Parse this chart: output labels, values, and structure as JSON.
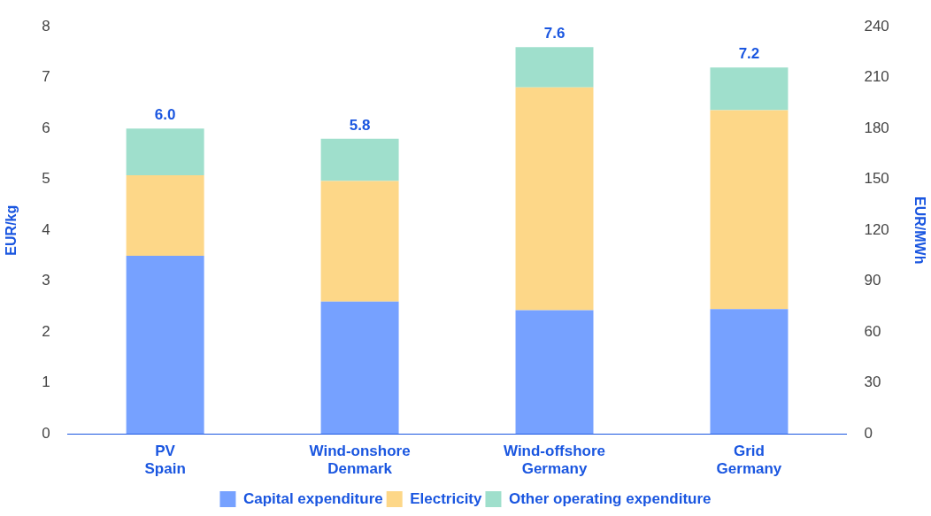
{
  "chart_data": {
    "type": "bar",
    "stacked": true,
    "categories": [
      "PV\nSpain",
      "Wind-onshore\nDenmark",
      "Wind-offshore\nGermany",
      "Grid\nGermany"
    ],
    "series": [
      {
        "name": "Capital expenditure",
        "color": "#76a1ff",
        "values": [
          3.5,
          2.6,
          2.43,
          2.45
        ]
      },
      {
        "name": "Electricity",
        "color": "#fdd788",
        "values": [
          1.58,
          2.37,
          4.38,
          3.91
        ]
      },
      {
        "name": "Other operating expenditure",
        "color": "#9fdfcc",
        "values": [
          0.92,
          0.83,
          0.79,
          0.84
        ]
      }
    ],
    "totals": [
      "6.0",
      "5.8",
      "7.6",
      "7.2"
    ],
    "ylabel": "EUR/kg",
    "ylim": [
      0,
      8
    ],
    "yticks": [
      0,
      1,
      2,
      3,
      4,
      5,
      6,
      7,
      8
    ],
    "y2label": "EUR/MWh",
    "y2lim": [
      0,
      240
    ],
    "y2ticks": [
      0,
      30,
      60,
      90,
      120,
      150,
      180,
      210,
      240
    ],
    "grid": false,
    "legend": "bottom"
  }
}
